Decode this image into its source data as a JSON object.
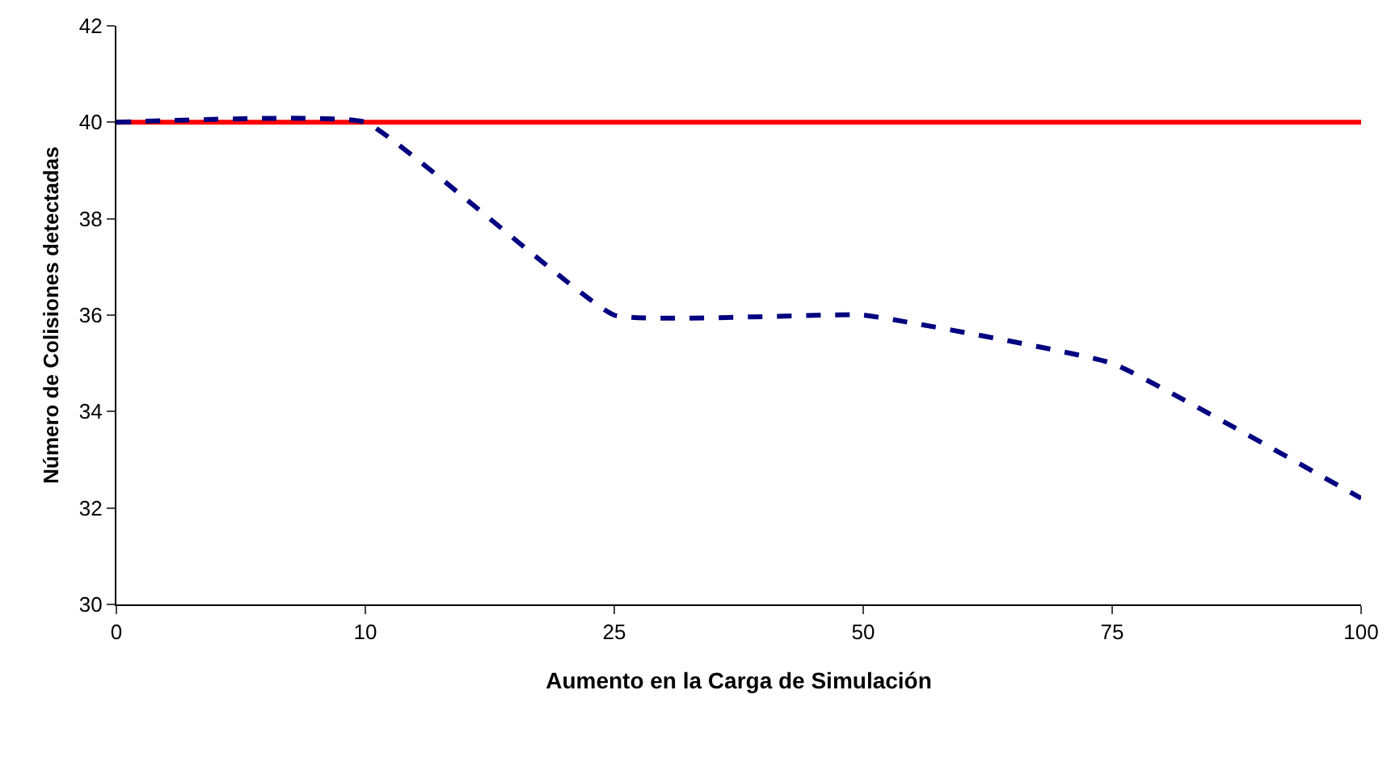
{
  "chart_data": {
    "type": "line",
    "xlabel": "Aumento en la Carga de Simulación",
    "ylabel": "Número de Colisiones detectadas",
    "categories": [
      "0",
      "10",
      "25",
      "50",
      "75",
      "100"
    ],
    "series": [
      {
        "color": "#ff0000",
        "line_style": "solid",
        "values": [
          40,
          40,
          40,
          40,
          40,
          40
        ]
      },
      {
        "color": "#000080",
        "line_style": "dashed",
        "values": [
          40,
          40,
          36,
          36,
          35,
          32.2
        ]
      }
    ],
    "ylim": [
      30,
      42
    ],
    "yticks": [
      30,
      32,
      34,
      36,
      38,
      40,
      42
    ],
    "grid": false,
    "marker": "none"
  }
}
